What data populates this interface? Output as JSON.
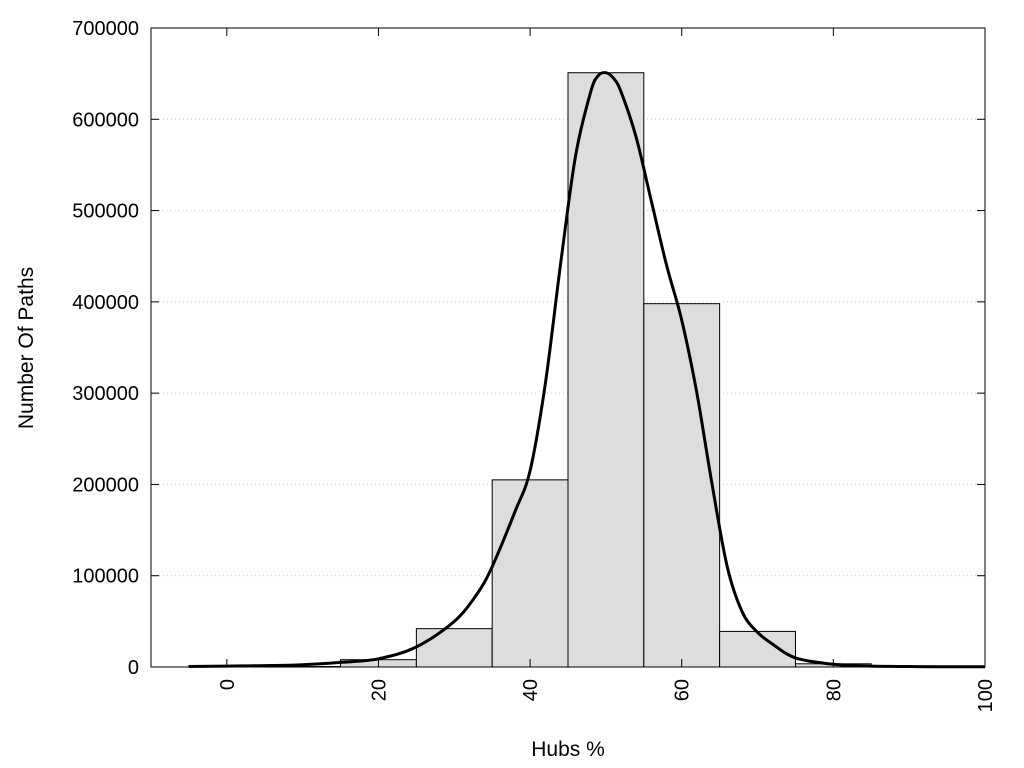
{
  "chart_data": {
    "type": "bar",
    "xlabel": "Hubs %",
    "ylabel": "Number Of Paths",
    "xlim": [
      -10,
      100
    ],
    "ylim": [
      0,
      700000
    ],
    "x_ticks": [
      0,
      20,
      40,
      60,
      80,
      100
    ],
    "y_ticks": [
      0,
      100000,
      200000,
      300000,
      400000,
      500000,
      600000,
      700000
    ],
    "grid": "horizontal dotted",
    "bin_width": 10,
    "bins": [
      {
        "center": 0,
        "value": 1500
      },
      {
        "center": 10,
        "value": 500
      },
      {
        "center": 20,
        "value": 8000
      },
      {
        "center": 30,
        "value": 42000
      },
      {
        "center": 40,
        "value": 205000
      },
      {
        "center": 50,
        "value": 651000
      },
      {
        "center": 60,
        "value": 398000
      },
      {
        "center": 70,
        "value": 39000
      },
      {
        "center": 80,
        "value": 3500
      },
      {
        "center": 90,
        "value": 800
      }
    ],
    "curve": {
      "x": [
        -5,
        0,
        5,
        10,
        15,
        20,
        25,
        30,
        33,
        35,
        38,
        40,
        42,
        44,
        46,
        48,
        49,
        50,
        51,
        52,
        54,
        56,
        58,
        60,
        62,
        64,
        66,
        68,
        70,
        72,
        75,
        80,
        85,
        90,
        95,
        100
      ],
      "y": [
        500,
        1000,
        1500,
        2500,
        5000,
        9000,
        22000,
        50000,
        80000,
        110000,
        170000,
        215000,
        310000,
        440000,
        560000,
        630000,
        648000,
        651000,
        645000,
        630000,
        580000,
        510000,
        440000,
        380000,
        300000,
        200000,
        110000,
        60000,
        38000,
        25000,
        10000,
        3000,
        1000,
        500,
        300,
        200
      ]
    },
    "colors": {
      "bar_fill": "#dddddd",
      "bar_stroke": "#000000",
      "curve": "#000000",
      "grid": "#cccccc"
    }
  }
}
